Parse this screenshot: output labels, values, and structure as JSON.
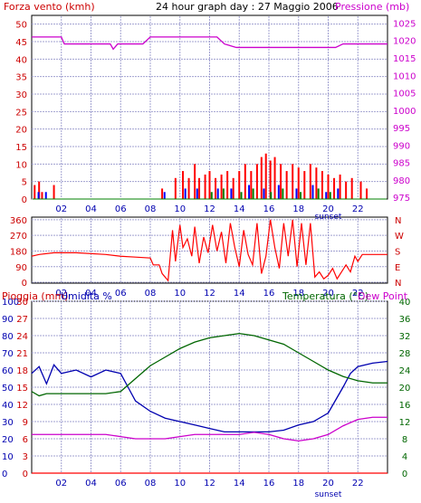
{
  "header": {
    "left_label": "Forza vento (kmh)",
    "title": "24 hour graph day : 27 Maggio 2006",
    "right_label": "Pressione (mb)"
  },
  "bottom_header": {
    "left_label": "Pioggia (mm)",
    "left_label2": "Umidita %",
    "right_label": "Temperatura (°C)",
    "right_label2": "Dew Point"
  },
  "x_labels": [
    "02",
    "04",
    "06",
    "08",
    "10",
    "12",
    "14",
    "16",
    "18",
    "20",
    "22"
  ],
  "sunset_label": "sunset",
  "colors": {
    "bg": "#ffffff",
    "frame": "#000000",
    "grid": "#a0a0d0",
    "wind": "#ff0000",
    "wind_gust": "#0000ff",
    "wind_green": "#008000",
    "pressure": "#cc00cc",
    "direction": "#ff0000",
    "humidity": "#0000b0",
    "temperature": "#006600",
    "dewpoint": "#cc00cc",
    "rain": "#ff0000",
    "title": "#000000",
    "left_axis": "#cc0000",
    "right_axis_pressure": "#cc00cc",
    "right_axis_temp": "#006600"
  },
  "chart_data": [
    {
      "type": "line",
      "title": "24 hour graph day : 27 Maggio 2006",
      "x_range_hours": [
        0,
        24
      ],
      "left_axis": {
        "label": "Forza vento (kmh)",
        "ticks": [
          0,
          5,
          10,
          15,
          20,
          25,
          30,
          35,
          40,
          45,
          50
        ],
        "range": [
          0,
          52.5
        ]
      },
      "right_axis": {
        "label": "Pressione (mb)",
        "ticks": [
          975,
          980,
          985,
          990,
          995,
          1000,
          1005,
          1010,
          1015,
          1020,
          1025
        ],
        "range": [
          974.5,
          1027.2
        ]
      },
      "series": [
        {
          "name": "Pressione",
          "axis": "right",
          "points": [
            [
              0,
              1021
            ],
            [
              2,
              1021
            ],
            [
              2.2,
              1019
            ],
            [
              5.3,
              1019
            ],
            [
              5.5,
              1017.5
            ],
            [
              5.8,
              1019
            ],
            [
              7.5,
              1019
            ],
            [
              8.0,
              1021
            ],
            [
              12.5,
              1021
            ],
            [
              13.0,
              1019
            ],
            [
              13.8,
              1018
            ],
            [
              20.5,
              1018
            ],
            [
              21.0,
              1019
            ],
            [
              24,
              1019
            ]
          ]
        }
      ],
      "wind_bars": [
        {
          "h": 0.2,
          "v": 4
        },
        {
          "h": 0.5,
          "v": 5
        },
        {
          "h": 0.7,
          "v": 2
        },
        {
          "h": 1.5,
          "v": 4
        },
        {
          "h": 8.8,
          "v": 3
        },
        {
          "h": 9.7,
          "v": 6
        },
        {
          "h": 10.2,
          "v": 8
        },
        {
          "h": 10.6,
          "v": 6
        },
        {
          "h": 11.0,
          "v": 10
        },
        {
          "h": 11.3,
          "v": 6
        },
        {
          "h": 11.7,
          "v": 7
        },
        {
          "h": 12.0,
          "v": 8
        },
        {
          "h": 12.4,
          "v": 6
        },
        {
          "h": 12.8,
          "v": 7
        },
        {
          "h": 13.2,
          "v": 8
        },
        {
          "h": 13.6,
          "v": 6
        },
        {
          "h": 14.0,
          "v": 8
        },
        {
          "h": 14.4,
          "v": 10
        },
        {
          "h": 14.8,
          "v": 8
        },
        {
          "h": 15.2,
          "v": 10
        },
        {
          "h": 15.5,
          "v": 12
        },
        {
          "h": 15.8,
          "v": 13
        },
        {
          "h": 16.1,
          "v": 11
        },
        {
          "h": 16.4,
          "v": 12
        },
        {
          "h": 16.8,
          "v": 10
        },
        {
          "h": 17.2,
          "v": 8
        },
        {
          "h": 17.6,
          "v": 10
        },
        {
          "h": 18.0,
          "v": 9
        },
        {
          "h": 18.4,
          "v": 8
        },
        {
          "h": 18.8,
          "v": 10
        },
        {
          "h": 19.2,
          "v": 9
        },
        {
          "h": 19.6,
          "v": 8
        },
        {
          "h": 20.0,
          "v": 7
        },
        {
          "h": 20.4,
          "v": 6
        },
        {
          "h": 20.8,
          "v": 7
        },
        {
          "h": 21.2,
          "v": 5
        },
        {
          "h": 21.6,
          "v": 6
        },
        {
          "h": 22.2,
          "v": 5
        },
        {
          "h": 22.6,
          "v": 3
        }
      ],
      "gust_bars": [
        {
          "h": 0.4,
          "v": 2
        },
        {
          "h": 0.9,
          "v": 2
        },
        {
          "h": 8.9,
          "v": 2
        },
        {
          "h": 10.3,
          "v": 3
        },
        {
          "h": 11.1,
          "v": 3
        },
        {
          "h": 12.5,
          "v": 3
        },
        {
          "h": 13.4,
          "v": 3
        },
        {
          "h": 14.6,
          "v": 4
        },
        {
          "h": 15.6,
          "v": 3
        },
        {
          "h": 16.6,
          "v": 4
        },
        {
          "h": 17.8,
          "v": 3
        },
        {
          "h": 18.9,
          "v": 4
        },
        {
          "h": 19.8,
          "v": 2
        },
        {
          "h": 20.6,
          "v": 3
        }
      ],
      "green_bars": [
        {
          "h": 12.2,
          "v": 2
        },
        {
          "h": 13.0,
          "v": 3
        },
        {
          "h": 14.2,
          "v": 2
        },
        {
          "h": 15.0,
          "v": 3
        },
        {
          "h": 16.2,
          "v": 2
        },
        {
          "h": 17.0,
          "v": 3
        },
        {
          "h": 18.2,
          "v": 2
        },
        {
          "h": 19.4,
          "v": 3
        },
        {
          "h": 20.2,
          "v": 2
        }
      ]
    },
    {
      "type": "line",
      "title": "",
      "x_range_hours": [
        0,
        24
      ],
      "left_axis": {
        "label": "",
        "ticks": [
          0,
          90,
          180,
          270,
          360
        ],
        "range": [
          -5,
          375
        ]
      },
      "right_axis_labels": [
        "N",
        "W",
        "S",
        "E",
        "N"
      ],
      "series": [
        {
          "name": "",
          "points": [
            [
              0,
              150
            ],
            [
              0.5,
              160
            ],
            [
              1.5,
              170
            ],
            [
              3,
              170
            ],
            [
              5,
              160
            ],
            [
              6,
              150
            ],
            [
              7,
              145
            ],
            [
              8,
              140
            ],
            [
              8.2,
              100
            ],
            [
              8.6,
              100
            ],
            [
              8.8,
              50
            ],
            [
              9.2,
              10
            ],
            [
              9.5,
              300
            ],
            [
              9.7,
              120
            ],
            [
              10.0,
              330
            ],
            [
              10.2,
              200
            ],
            [
              10.5,
              250
            ],
            [
              10.8,
              150
            ],
            [
              11.0,
              320
            ],
            [
              11.3,
              110
            ],
            [
              11.6,
              260
            ],
            [
              11.9,
              170
            ],
            [
              12.2,
              330
            ],
            [
              12.5,
              180
            ],
            [
              12.8,
              290
            ],
            [
              13.1,
              110
            ],
            [
              13.4,
              340
            ],
            [
              13.7,
              200
            ],
            [
              14.0,
              90
            ],
            [
              14.3,
              300
            ],
            [
              14.6,
              160
            ],
            [
              14.9,
              100
            ],
            [
              15.2,
              340
            ],
            [
              15.5,
              50
            ],
            [
              15.8,
              150
            ],
            [
              16.1,
              360
            ],
            [
              16.4,
              200
            ],
            [
              16.7,
              80
            ],
            [
              17.0,
              340
            ],
            [
              17.3,
              150
            ],
            [
              17.6,
              360
            ],
            [
              17.9,
              90
            ],
            [
              18.2,
              340
            ],
            [
              18.5,
              100
            ],
            [
              18.8,
              340
            ],
            [
              19.1,
              30
            ],
            [
              19.4,
              60
            ],
            [
              19.7,
              20
            ],
            [
              20.0,
              40
            ],
            [
              20.3,
              80
            ],
            [
              20.6,
              20
            ],
            [
              20.9,
              60
            ],
            [
              21.2,
              100
            ],
            [
              21.5,
              60
            ],
            [
              21.8,
              150
            ],
            [
              22.0,
              120
            ],
            [
              22.3,
              160
            ],
            [
              23,
              160
            ],
            [
              24,
              160
            ]
          ]
        }
      ]
    },
    {
      "type": "line",
      "title": "",
      "x_range_hours": [
        0,
        24
      ],
      "left_axis": {
        "label": "Pioggia (mm) / Umidita %",
        "ticks_rain": [
          0,
          3,
          6,
          9,
          12,
          15,
          18,
          21,
          24,
          27,
          30
        ],
        "ticks_hum": [
          0,
          10,
          20,
          30,
          40,
          50,
          60,
          70,
          80,
          90,
          100
        ]
      },
      "right_axis": {
        "label": "Temperatura (°C) / Dew Point",
        "ticks": [
          0,
          4,
          8,
          12,
          16,
          20,
          24,
          28,
          32,
          36,
          40
        ],
        "range": [
          0,
          40
        ]
      },
      "series": [
        {
          "name": "Umidita %",
          "axis": "humidity",
          "points": [
            [
              0,
              58
            ],
            [
              0.5,
              62
            ],
            [
              1,
              52
            ],
            [
              1.5,
              63
            ],
            [
              2,
              58
            ],
            [
              3,
              60
            ],
            [
              4,
              56
            ],
            [
              5,
              60
            ],
            [
              6,
              58
            ],
            [
              6.5,
              50
            ],
            [
              7,
              42
            ],
            [
              8,
              36
            ],
            [
              9,
              32
            ],
            [
              10,
              30
            ],
            [
              11,
              28
            ],
            [
              12,
              26
            ],
            [
              13,
              24
            ],
            [
              14,
              24
            ],
            [
              15,
              24
            ],
            [
              16,
              24
            ],
            [
              17,
              25
            ],
            [
              18,
              28
            ],
            [
              19,
              30
            ],
            [
              20,
              35
            ],
            [
              21,
              50
            ],
            [
              21.5,
              58
            ],
            [
              22,
              62
            ],
            [
              23,
              64
            ],
            [
              24,
              65
            ]
          ]
        },
        {
          "name": "Temperatura (°C)",
          "axis": "temp",
          "points": [
            [
              0,
              19
            ],
            [
              0.5,
              18
            ],
            [
              1,
              18.5
            ],
            [
              2,
              18.5
            ],
            [
              3,
              18.5
            ],
            [
              4,
              18.5
            ],
            [
              5,
              18.5
            ],
            [
              6,
              19
            ],
            [
              7,
              22
            ],
            [
              8,
              25
            ],
            [
              9,
              27
            ],
            [
              10,
              29
            ],
            [
              11,
              30.5
            ],
            [
              12,
              31.5
            ],
            [
              13,
              32
            ],
            [
              14,
              32.5
            ],
            [
              15,
              32
            ],
            [
              16,
              31
            ],
            [
              17,
              30
            ],
            [
              18,
              28
            ],
            [
              19,
              26
            ],
            [
              20,
              24
            ],
            [
              21,
              22.5
            ],
            [
              22,
              21.5
            ],
            [
              23,
              21
            ],
            [
              24,
              21
            ]
          ]
        },
        {
          "name": "Dew Point",
          "axis": "temp",
          "points": [
            [
              0,
              9
            ],
            [
              1,
              9
            ],
            [
              2,
              9
            ],
            [
              3,
              9
            ],
            [
              4,
              9
            ],
            [
              5,
              9
            ],
            [
              6,
              8.5
            ],
            [
              7,
              8
            ],
            [
              8,
              8
            ],
            [
              9,
              8
            ],
            [
              10,
              8.5
            ],
            [
              11,
              9
            ],
            [
              12,
              9
            ],
            [
              13,
              9
            ],
            [
              14,
              9
            ],
            [
              15,
              9.5
            ],
            [
              16,
              9
            ],
            [
              17,
              8
            ],
            [
              18,
              7.5
            ],
            [
              19,
              8
            ],
            [
              20,
              9
            ],
            [
              21,
              11
            ],
            [
              22,
              12.5
            ],
            [
              23,
              13
            ],
            [
              24,
              13
            ]
          ]
        },
        {
          "name": "Pioggia (mm)",
          "axis": "rain",
          "points": [
            [
              0,
              0
            ],
            [
              24,
              0
            ]
          ]
        }
      ]
    }
  ]
}
